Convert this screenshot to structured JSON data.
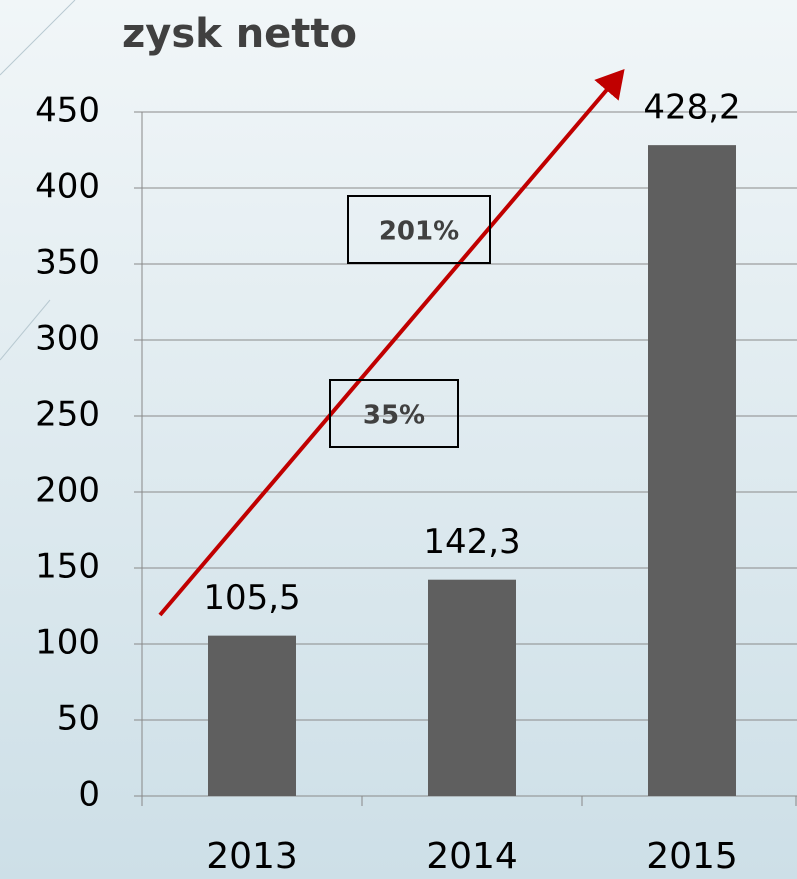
{
  "chart_data": {
    "type": "bar",
    "title": "zysk netto",
    "categories": [
      "2013",
      "2014",
      "2015"
    ],
    "values": [
      105.5,
      142.3,
      428.2
    ],
    "value_labels": [
      "105,5",
      "142,3",
      "428,2"
    ],
    "color": "#5f5f5f",
    "ylim": [
      0,
      450
    ],
    "yticks": [
      0,
      50,
      100,
      150,
      200,
      250,
      300,
      350,
      400,
      450
    ],
    "grid": true,
    "annotations": [
      "201%",
      "35%"
    ]
  }
}
